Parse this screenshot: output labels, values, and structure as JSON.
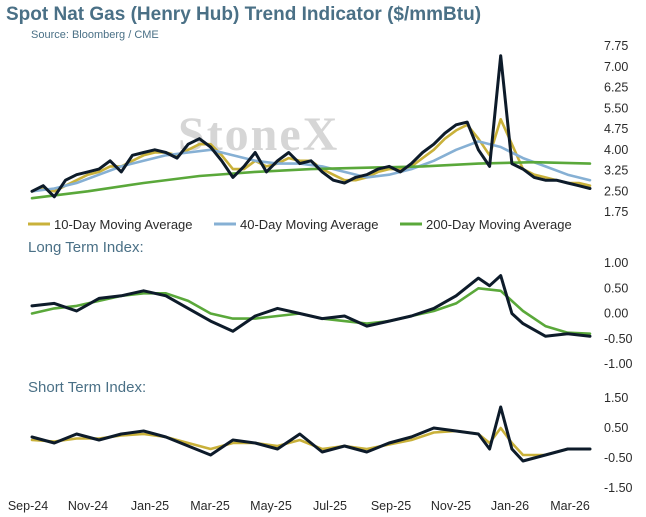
{
  "header": {
    "title": "Spot Nat Gas (Henry Hub) Trend Indicator ($/mmBtu)",
    "source": "Source: Bloomberg / CME",
    "watermark": "StoneX"
  },
  "colors": {
    "price": "#0d1b2a",
    "ma10": "#c9b13a",
    "ma40": "#86b0d4",
    "ma200": "#5aa83a",
    "long_index": "#0d1b2a",
    "long_signal": "#5aa83a",
    "short_index": "#0d1b2a",
    "short_signal": "#c9b13a",
    "title": "#4a7086"
  },
  "x_axis": {
    "tick_labels": [
      "Sep-24",
      "Nov-24",
      "Jan-25",
      "Mar-25",
      "May-25",
      "Jul-25",
      "Sep-25",
      "Nov-25",
      "Jan-26",
      "Mar-26"
    ]
  },
  "chart_data": [
    {
      "type": "line",
      "panel": "price",
      "y_tick_labels": [
        "7.75",
        "7.00",
        "6.25",
        "5.50",
        "4.75",
        "4.00",
        "3.25",
        "2.50",
        "1.75"
      ],
      "ylim": [
        1.75,
        7.75
      ],
      "legend": [
        "10-Day Moving Average",
        "40-Day Moving Average",
        "200-Day Moving Average"
      ],
      "legend_placement": "bottom",
      "series": [
        {
          "role": "spot",
          "x": [
            0,
            2,
            4,
            6,
            8,
            10,
            12,
            14,
            16,
            18,
            20,
            22,
            24,
            26,
            28,
            30,
            32,
            34,
            36,
            38,
            40,
            42,
            44,
            46,
            48,
            50,
            52,
            54,
            56,
            58,
            60,
            62,
            64,
            66,
            68,
            70,
            72,
            74,
            76,
            78,
            80,
            82,
            84,
            86,
            88,
            90,
            92,
            94,
            96,
            98,
            100
          ],
          "values": [
            2.5,
            2.7,
            2.3,
            2.9,
            3.1,
            3.2,
            3.3,
            3.6,
            3.2,
            3.8,
            3.9,
            4.0,
            3.9,
            3.7,
            4.2,
            4.4,
            4.1,
            3.6,
            3.0,
            3.4,
            3.9,
            3.2,
            3.6,
            3.9,
            3.5,
            3.6,
            3.2,
            2.9,
            2.8,
            3.0,
            3.1,
            3.3,
            3.4,
            3.2,
            3.5,
            3.9,
            4.2,
            4.6,
            4.9,
            5.0,
            4.0,
            3.4,
            7.4,
            3.5,
            3.3,
            3.0,
            2.9,
            2.9,
            2.8,
            2.7,
            2.6
          ]
        },
        {
          "name": "10-Day Moving Average",
          "x": [
            0,
            2,
            4,
            6,
            8,
            10,
            12,
            14,
            16,
            18,
            20,
            22,
            24,
            26,
            28,
            30,
            32,
            34,
            36,
            38,
            40,
            42,
            44,
            46,
            48,
            50,
            52,
            54,
            56,
            58,
            60,
            62,
            64,
            66,
            68,
            70,
            72,
            74,
            76,
            78,
            80,
            82,
            84,
            86,
            88,
            90,
            92,
            94,
            96,
            98,
            100
          ],
          "values": [
            2.5,
            2.6,
            2.5,
            2.7,
            2.9,
            3.1,
            3.2,
            3.4,
            3.4,
            3.6,
            3.8,
            3.9,
            3.9,
            3.8,
            4.0,
            4.2,
            4.2,
            3.8,
            3.3,
            3.3,
            3.6,
            3.4,
            3.5,
            3.7,
            3.6,
            3.6,
            3.3,
            3.1,
            2.9,
            2.9,
            3.0,
            3.2,
            3.3,
            3.3,
            3.4,
            3.7,
            4.0,
            4.4,
            4.7,
            4.9,
            4.4,
            3.8,
            5.1,
            4.2,
            3.3,
            3.1,
            3.0,
            2.9,
            2.8,
            2.8,
            2.7
          ]
        },
        {
          "name": "40-Day Moving Average",
          "x": [
            0,
            4,
            8,
            12,
            16,
            20,
            24,
            28,
            32,
            36,
            40,
            44,
            48,
            52,
            56,
            60,
            64,
            68,
            72,
            76,
            80,
            84,
            88,
            92,
            96,
            100
          ],
          "values": [
            2.5,
            2.6,
            2.8,
            3.1,
            3.4,
            3.6,
            3.8,
            3.9,
            4.0,
            3.8,
            3.6,
            3.5,
            3.5,
            3.4,
            3.2,
            3.0,
            3.1,
            3.3,
            3.6,
            4.0,
            4.3,
            4.1,
            3.7,
            3.4,
            3.1,
            2.9
          ]
        },
        {
          "name": "200-Day Moving Average",
          "x": [
            0,
            10,
            20,
            30,
            40,
            50,
            60,
            70,
            80,
            90,
            100
          ],
          "values": [
            2.25,
            2.5,
            2.8,
            3.05,
            3.2,
            3.3,
            3.35,
            3.4,
            3.5,
            3.55,
            3.5
          ]
        }
      ]
    },
    {
      "type": "line",
      "panel": "long_term",
      "title": "Long Term Index:",
      "y_tick_labels": [
        "1.00",
        "0.50",
        "0.00",
        "-0.50",
        "-1.00"
      ],
      "ylim": [
        -1.0,
        1.0
      ],
      "series": [
        {
          "role": "index",
          "x": [
            0,
            4,
            8,
            12,
            16,
            20,
            24,
            28,
            32,
            36,
            40,
            44,
            48,
            52,
            56,
            60,
            64,
            68,
            72,
            76,
            80,
            82,
            84,
            86,
            88,
            92,
            96,
            100
          ],
          "values": [
            0.15,
            0.2,
            0.05,
            0.3,
            0.35,
            0.45,
            0.35,
            0.1,
            -0.15,
            -0.35,
            -0.05,
            0.1,
            0.0,
            -0.1,
            -0.05,
            -0.25,
            -0.15,
            -0.05,
            0.1,
            0.35,
            0.7,
            0.55,
            0.75,
            0.0,
            -0.2,
            -0.45,
            -0.4,
            -0.45
          ]
        },
        {
          "role": "signal",
          "x": [
            0,
            4,
            8,
            12,
            16,
            20,
            24,
            28,
            32,
            36,
            40,
            44,
            48,
            52,
            56,
            60,
            64,
            68,
            72,
            76,
            80,
            84,
            88,
            92,
            96,
            100
          ],
          "values": [
            0.0,
            0.1,
            0.15,
            0.25,
            0.35,
            0.4,
            0.4,
            0.25,
            0.0,
            -0.1,
            -0.1,
            -0.05,
            0.0,
            -0.1,
            -0.15,
            -0.2,
            -0.15,
            -0.05,
            0.05,
            0.2,
            0.5,
            0.45,
            0.05,
            -0.25,
            -0.38,
            -0.4
          ]
        }
      ]
    },
    {
      "type": "line",
      "panel": "short_term",
      "title": "Short Term Index:",
      "y_tick_labels": [
        "1.50",
        "0.50",
        "-0.50",
        "-1.50"
      ],
      "ylim": [
        -1.5,
        1.5
      ],
      "series": [
        {
          "role": "index",
          "x": [
            0,
            4,
            8,
            12,
            16,
            20,
            24,
            28,
            32,
            36,
            40,
            44,
            48,
            52,
            56,
            60,
            64,
            68,
            72,
            76,
            80,
            82,
            84,
            86,
            88,
            92,
            96,
            100
          ],
          "values": [
            0.2,
            0.0,
            0.3,
            0.1,
            0.3,
            0.4,
            0.2,
            -0.1,
            -0.4,
            0.1,
            0.0,
            -0.2,
            0.3,
            -0.3,
            -0.1,
            -0.3,
            0.0,
            0.2,
            0.5,
            0.4,
            0.3,
            -0.2,
            1.2,
            -0.2,
            -0.6,
            -0.4,
            -0.2,
            -0.2
          ]
        },
        {
          "role": "signal",
          "x": [
            0,
            4,
            8,
            12,
            16,
            20,
            24,
            28,
            32,
            36,
            40,
            44,
            48,
            52,
            56,
            60,
            64,
            68,
            72,
            76,
            80,
            82,
            84,
            86,
            88,
            92,
            96,
            100
          ],
          "values": [
            0.1,
            0.05,
            0.15,
            0.15,
            0.25,
            0.3,
            0.2,
            0.0,
            -0.2,
            0.0,
            0.0,
            -0.1,
            0.1,
            -0.2,
            -0.1,
            -0.2,
            -0.05,
            0.1,
            0.35,
            0.4,
            0.3,
            0.0,
            0.5,
            0.0,
            -0.4,
            -0.4,
            -0.2,
            -0.2
          ]
        }
      ]
    }
  ]
}
